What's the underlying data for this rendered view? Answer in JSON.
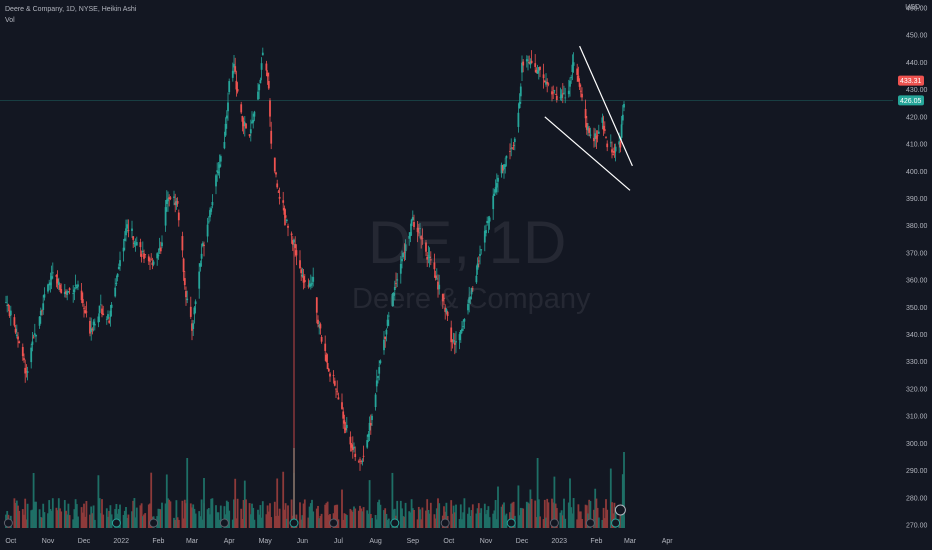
{
  "legend": {
    "title": "Deere & Company, 1D, NYSE, Heikin Ashi",
    "volume_label": "Vol"
  },
  "watermark": {
    "ticker": "DE, 1D",
    "name": "Deere & Company"
  },
  "colors": {
    "background": "#131722",
    "up": "#26a69a",
    "down": "#ef5350",
    "up_volume": "#1e6f66",
    "down_volume": "#8e3a3a",
    "price_line": "#26a69a",
    "trendline": "#ffffff",
    "last_price_badge": "#ef5350",
    "current_price_badge": "#26a69a"
  },
  "chart_data": {
    "type": "candlestick",
    "style": "Heikin Ashi",
    "currency": "USD",
    "y_axis": {
      "ticks": [
        460,
        450,
        440,
        430,
        420,
        410,
        400,
        390,
        380,
        370,
        360,
        350,
        340,
        330,
        320,
        310,
        300,
        290,
        280,
        270
      ],
      "tick_labels": [
        "460.00",
        "450.00",
        "440.00",
        "430.00",
        "420.00",
        "410.00",
        "400.00",
        "390.00",
        "380.00",
        "370.00",
        "360.00",
        "350.00",
        "340.00",
        "330.00",
        "320.00",
        "310.00",
        "300.00",
        "290.00",
        "280.00",
        "270.00"
      ],
      "range": [
        268,
        462
      ]
    },
    "x_axis": {
      "labels": [
        "Oct",
        "Nov",
        "Dec",
        "2022",
        "Feb",
        "Mar",
        "Apr",
        "May",
        "Jun",
        "Jul",
        "Aug",
        "Sep",
        "Oct",
        "Nov",
        "Dec",
        "2023",
        "Feb",
        "Mar",
        "Apr"
      ]
    },
    "price_path": [
      {
        "date": "2021-09-27",
        "price": 352
      },
      {
        "date": "2021-10-08",
        "price": 338
      },
      {
        "date": "2021-10-14",
        "price": 325
      },
      {
        "date": "2021-10-25",
        "price": 348
      },
      {
        "date": "2021-11-05",
        "price": 362
      },
      {
        "date": "2021-11-15",
        "price": 355
      },
      {
        "date": "2021-11-25",
        "price": 358
      },
      {
        "date": "2021-12-06",
        "price": 342
      },
      {
        "date": "2021-12-15",
        "price": 350
      },
      {
        "date": "2021-12-22",
        "price": 345
      },
      {
        "date": "2021-12-30",
        "price": 365
      },
      {
        "date": "2022-01-06",
        "price": 380
      },
      {
        "date": "2022-01-13",
        "price": 375
      },
      {
        "date": "2022-01-24",
        "price": 365
      },
      {
        "date": "2022-02-03",
        "price": 372
      },
      {
        "date": "2022-02-09",
        "price": 392
      },
      {
        "date": "2022-02-17",
        "price": 388
      },
      {
        "date": "2022-02-24",
        "price": 355
      },
      {
        "date": "2022-03-01",
        "price": 342
      },
      {
        "date": "2022-03-09",
        "price": 370
      },
      {
        "date": "2022-03-18",
        "price": 390
      },
      {
        "date": "2022-03-28",
        "price": 412
      },
      {
        "date": "2022-04-01",
        "price": 432
      },
      {
        "date": "2022-04-05",
        "price": 438
      },
      {
        "date": "2022-04-11",
        "price": 420
      },
      {
        "date": "2022-04-18",
        "price": 412
      },
      {
        "date": "2022-04-21",
        "price": 420
      },
      {
        "date": "2022-04-25",
        "price": 428
      },
      {
        "date": "2022-04-29",
        "price": 442
      },
      {
        "date": "2022-05-04",
        "price": 432
      },
      {
        "date": "2022-05-06",
        "price": 410
      },
      {
        "date": "2022-05-11",
        "price": 395
      },
      {
        "date": "2022-05-17",
        "price": 385
      },
      {
        "date": "2022-05-24",
        "price": 375
      },
      {
        "date": "2022-05-31",
        "price": 362
      },
      {
        "date": "2022-06-06",
        "price": 356
      },
      {
        "date": "2022-06-10",
        "price": 362
      },
      {
        "date": "2022-06-14",
        "price": 345
      },
      {
        "date": "2022-06-21",
        "price": 330
      },
      {
        "date": "2022-06-28",
        "price": 322
      },
      {
        "date": "2022-07-06",
        "price": 308
      },
      {
        "date": "2022-07-13",
        "price": 298
      },
      {
        "date": "2022-07-18",
        "price": 292
      },
      {
        "date": "2022-07-22",
        "price": 296
      },
      {
        "date": "2022-07-29",
        "price": 310
      },
      {
        "date": "2022-08-05",
        "price": 330
      },
      {
        "date": "2022-08-12",
        "price": 348
      },
      {
        "date": "2022-08-19",
        "price": 362
      },
      {
        "date": "2022-08-26",
        "price": 372
      },
      {
        "date": "2022-09-01",
        "price": 382
      },
      {
        "date": "2022-09-07",
        "price": 378
      },
      {
        "date": "2022-09-14",
        "price": 368
      },
      {
        "date": "2022-09-21",
        "price": 360
      },
      {
        "date": "2022-09-28",
        "price": 350
      },
      {
        "date": "2022-10-03",
        "price": 338
      },
      {
        "date": "2022-10-07",
        "price": 336
      },
      {
        "date": "2022-10-14",
        "price": 346
      },
      {
        "date": "2022-10-21",
        "price": 358
      },
      {
        "date": "2022-10-28",
        "price": 370
      },
      {
        "date": "2022-11-04",
        "price": 385
      },
      {
        "date": "2022-11-11",
        "price": 398
      },
      {
        "date": "2022-11-18",
        "price": 405
      },
      {
        "date": "2022-11-25",
        "price": 412
      },
      {
        "date": "2022-11-29",
        "price": 424
      },
      {
        "date": "2022-12-01",
        "price": 438
      },
      {
        "date": "2022-12-06",
        "price": 442
      },
      {
        "date": "2022-12-12",
        "price": 438
      },
      {
        "date": "2022-12-19",
        "price": 434
      },
      {
        "date": "2022-12-26",
        "price": 430
      },
      {
        "date": "2023-01-02",
        "price": 426
      },
      {
        "date": "2023-01-09",
        "price": 430
      },
      {
        "date": "2023-01-13",
        "price": 440
      },
      {
        "date": "2023-01-18",
        "price": 432
      },
      {
        "date": "2023-01-24",
        "price": 415
      },
      {
        "date": "2023-01-31",
        "price": 412
      },
      {
        "date": "2023-02-06",
        "price": 418
      },
      {
        "date": "2023-02-10",
        "price": 410
      },
      {
        "date": "2023-02-15",
        "price": 408
      },
      {
        "date": "2023-02-21",
        "price": 410
      },
      {
        "date": "2023-02-24",
        "price": 426
      }
    ],
    "horizontal_level": 426.05,
    "trendlines": [
      {
        "name": "upper-channel-line",
        "from": {
          "date": "2023-01-18",
          "price": 446
        },
        "to": {
          "date": "2023-03-03",
          "price": 402
        }
      },
      {
        "name": "lower-channel-line",
        "from": {
          "date": "2022-12-20",
          "price": 420
        },
        "to": {
          "date": "2023-03-01",
          "price": 393
        }
      }
    ],
    "last_price": {
      "value": 433.31,
      "label": "433.31"
    },
    "current_price": {
      "value": 426.05,
      "label": "426.05"
    }
  }
}
